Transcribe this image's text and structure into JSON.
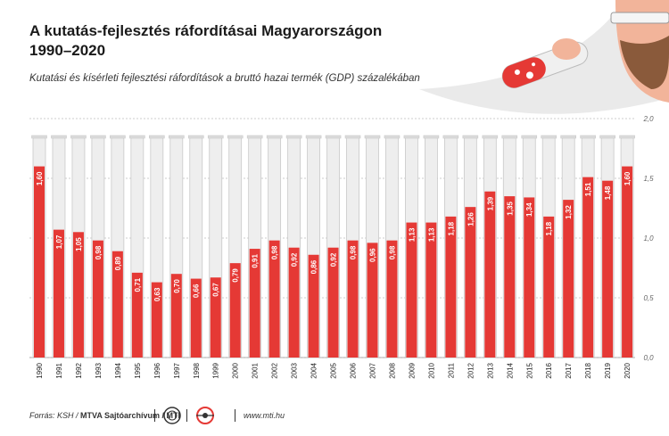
{
  "header": {
    "title_line1": "A kutatás-fejlesztés ráfordításai Magyarországon",
    "title_line2": "1990–2020",
    "subtitle": "Kutatási és kísérleti fejlesztési ráfordítások a bruttó hazai termék (GDP) százalékában"
  },
  "footer": {
    "source_prefix": "Forrás: KSH / ",
    "source_bold": "MTVA Sajtóarchívum / MTI",
    "url": "www.mti.hu"
  },
  "colors": {
    "bar": "#e53935",
    "tube": "#eeeeee",
    "tube_border": "#c9c9c9",
    "grid": "#bdbdbd"
  },
  "chart_data": {
    "type": "bar",
    "categories": [
      "1990",
      "1991",
      "1992",
      "1993",
      "1994",
      "1995",
      "1996",
      "1997",
      "1998",
      "1999",
      "2000",
      "2001",
      "2002",
      "2003",
      "2004",
      "2005",
      "2006",
      "2007",
      "2008",
      "2009",
      "2010",
      "2011",
      "2012",
      "2013",
      "2014",
      "2015",
      "2016",
      "2017",
      "2018",
      "2019",
      "2020"
    ],
    "values": [
      1.6,
      1.07,
      1.05,
      0.98,
      0.89,
      0.71,
      0.63,
      0.7,
      0.66,
      0.67,
      0.79,
      0.91,
      0.98,
      0.92,
      0.86,
      0.92,
      0.98,
      0.96,
      0.98,
      1.13,
      1.13,
      1.18,
      1.26,
      1.39,
      1.35,
      1.34,
      1.18,
      1.32,
      1.51,
      1.48,
      1.6
    ],
    "labels": [
      "1,60",
      "1,07",
      "1,05",
      "0,98",
      "0,89",
      "0,71",
      "0,63",
      "0,70",
      "0,66",
      "0,67",
      "0,79",
      "0,91",
      "0,98",
      "0,92",
      "0,86",
      "0,92",
      "0,98",
      "0,96",
      "0,98",
      "1,13",
      "1,13",
      "1,18",
      "1,26",
      "1,39",
      "1,35",
      "1,34",
      "1,18",
      "1,32",
      "1,51",
      "1,48",
      "1,60"
    ],
    "ylim": [
      0,
      2.0
    ],
    "yticks": [
      "0,0",
      "0,5",
      "1,0",
      "1,5",
      "2,0"
    ],
    "grid": true
  }
}
